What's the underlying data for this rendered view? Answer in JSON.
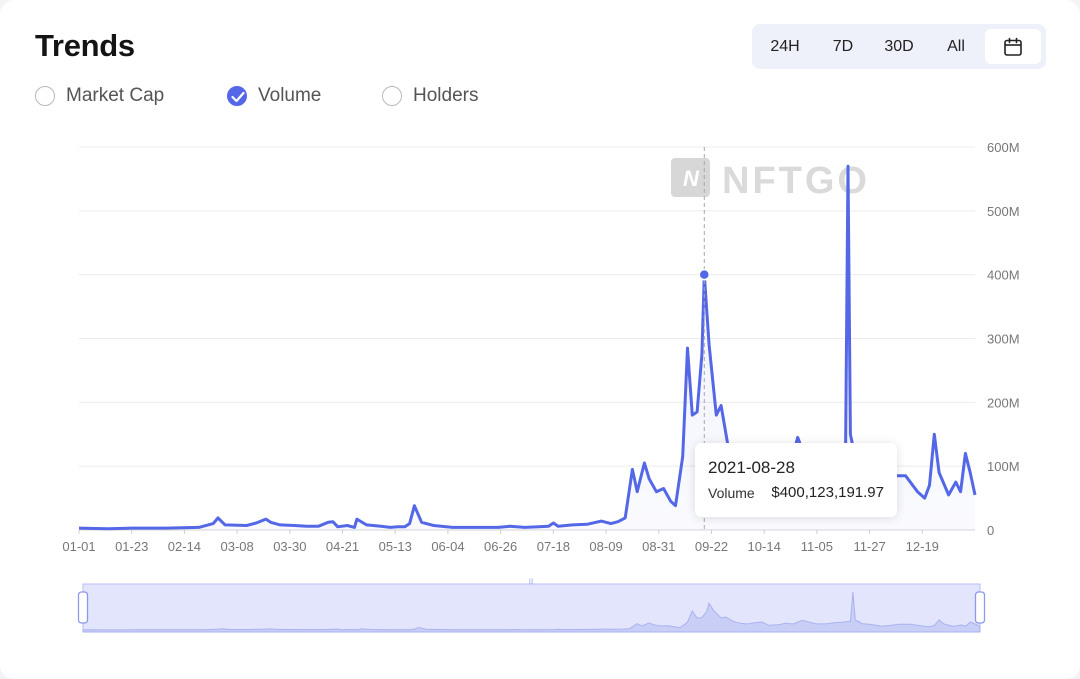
{
  "header": {
    "title": "Trends",
    "ranges": [
      "24H",
      "7D",
      "30D",
      "All"
    ],
    "calendar_icon": "calendar-icon"
  },
  "metrics": [
    {
      "label": "Market Cap",
      "checked": false
    },
    {
      "label": "Volume",
      "checked": true
    },
    {
      "label": "Holders",
      "checked": false
    }
  ],
  "watermark": "NFTGO",
  "colors": {
    "accent": "#5468e7",
    "grid": "#ececec",
    "text_muted": "#7a7a7a"
  },
  "tooltip": {
    "date": "2021-08-28",
    "series_label": "Volume",
    "value": "$400,123,191.97"
  },
  "chart_data": {
    "type": "area",
    "x_ticks": [
      "01-01",
      "01-23",
      "02-14",
      "03-08",
      "03-30",
      "04-21",
      "05-13",
      "06-04",
      "06-26",
      "07-18",
      "08-09",
      "08-31",
      "09-22",
      "10-14",
      "11-05",
      "11-27",
      "12-19"
    ],
    "y_ticks": [
      "0",
      "100M",
      "200M",
      "300M",
      "400M",
      "500M",
      "600M"
    ],
    "ylim": [
      0,
      600
    ],
    "y_unit": "M",
    "grid": true,
    "axis_position": "right",
    "series": [
      {
        "values": [
          [
            0,
            3
          ],
          [
            12,
            2
          ],
          [
            22,
            3
          ],
          [
            36,
            3
          ],
          [
            50,
            4
          ],
          [
            56,
            10
          ],
          [
            58,
            19
          ],
          [
            61,
            8
          ],
          [
            70,
            7
          ],
          [
            74,
            11
          ],
          [
            78,
            17
          ],
          [
            80,
            12
          ],
          [
            84,
            8
          ],
          [
            90,
            7
          ],
          [
            95,
            6
          ],
          [
            100,
            6
          ],
          [
            104,
            12
          ],
          [
            106,
            13
          ],
          [
            108,
            5
          ],
          [
            112,
            7
          ],
          [
            115,
            4
          ],
          [
            116,
            17
          ],
          [
            120,
            8
          ],
          [
            126,
            6
          ],
          [
            130,
            4
          ],
          [
            133,
            5
          ],
          [
            136,
            5
          ],
          [
            138,
            10
          ],
          [
            140,
            38
          ],
          [
            143,
            12
          ],
          [
            148,
            7
          ],
          [
            156,
            4
          ],
          [
            165,
            4
          ],
          [
            175,
            4
          ],
          [
            180,
            6
          ],
          [
            186,
            4
          ],
          [
            192,
            5
          ],
          [
            196,
            6
          ],
          [
            198,
            11
          ],
          [
            200,
            6
          ],
          [
            206,
            8
          ],
          [
            212,
            9
          ],
          [
            218,
            14
          ],
          [
            222,
            10
          ],
          [
            225,
            13
          ],
          [
            228,
            19
          ],
          [
            231,
            95
          ],
          [
            233,
            60
          ],
          [
            236,
            105
          ],
          [
            238,
            80
          ],
          [
            241,
            60
          ],
          [
            244,
            65
          ],
          [
            247,
            45
          ],
          [
            249,
            38
          ],
          [
            252,
            115
          ],
          [
            254,
            285
          ],
          [
            256,
            180
          ],
          [
            258,
            185
          ],
          [
            260,
            275
          ],
          [
            261,
            400
          ],
          [
            263,
            290
          ],
          [
            266,
            180
          ],
          [
            268,
            195
          ],
          [
            271,
            130
          ],
          [
            274,
            100
          ],
          [
            277,
            90
          ],
          [
            280,
            110
          ],
          [
            283,
            120
          ],
          [
            286,
            70
          ],
          [
            290,
            80
          ],
          [
            293,
            100
          ],
          [
            296,
            90
          ],
          [
            300,
            145
          ],
          [
            303,
            115
          ],
          [
            306,
            90
          ],
          [
            310,
            95
          ],
          [
            313,
            110
          ],
          [
            316,
            115
          ],
          [
            320,
            130
          ],
          [
            321,
            570
          ],
          [
            322,
            150
          ],
          [
            325,
            95
          ],
          [
            328,
            85
          ],
          [
            333,
            55
          ],
          [
            338,
            75
          ],
          [
            340,
            85
          ],
          [
            345,
            85
          ],
          [
            350,
            60
          ],
          [
            353,
            50
          ],
          [
            355,
            70
          ],
          [
            357,
            150
          ],
          [
            359,
            90
          ],
          [
            363,
            55
          ],
          [
            366,
            75
          ],
          [
            368,
            60
          ],
          [
            370,
            120
          ],
          [
            372,
            90
          ],
          [
            374,
            55
          ]
        ]
      }
    ],
    "highlight": {
      "x_label": "2021-08-28",
      "value": 400
    }
  }
}
